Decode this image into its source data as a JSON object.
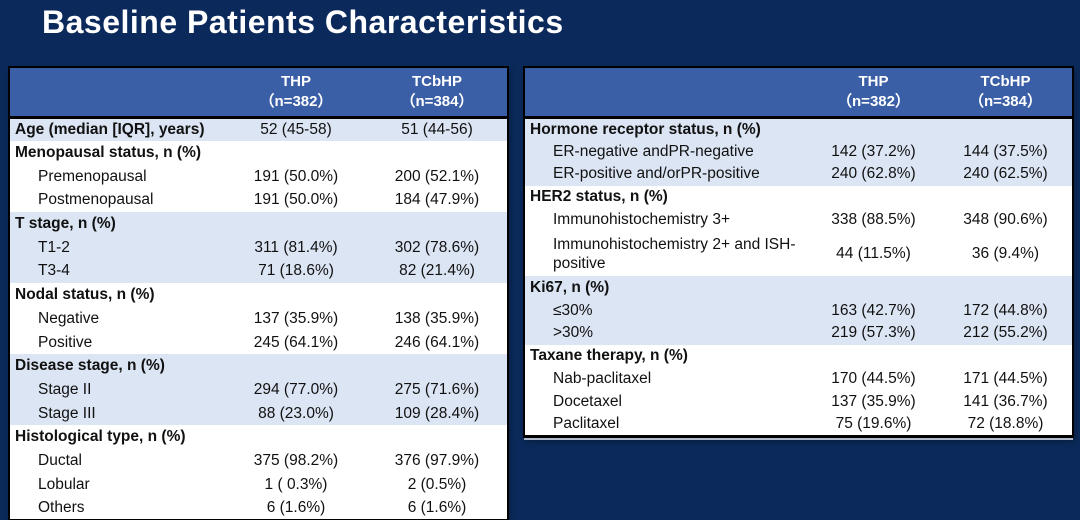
{
  "title": "Baseline Patients Characteristics",
  "colors": {
    "slide_bg": "#0B2A5B",
    "header_bg": "#3B5FA6",
    "band_blue": "#DCE5F3",
    "band_white": "#FFFFFF",
    "border": "#000000",
    "text": "#111111",
    "title_color": "#FFFFFF"
  },
  "tables": [
    {
      "name": "left-baseline-table",
      "columns": [
        {
          "name": "THP",
          "n": "（n=382）"
        },
        {
          "name": "TCbHP",
          "n": "（n=384）"
        }
      ],
      "rows": [
        {
          "label": "Age (median [IQR], years)",
          "bold": true,
          "indent": false,
          "band": "blue",
          "v1": "52 (45-58)",
          "v2": "51 (44-56)"
        },
        {
          "label": "Menopausal status, n (%)",
          "bold": true,
          "indent": false,
          "band": "white",
          "v1": "",
          "v2": ""
        },
        {
          "label": "Premenopausal",
          "bold": false,
          "indent": true,
          "band": "white",
          "v1": "191 (50.0%)",
          "v2": "200 (52.1%)"
        },
        {
          "label": "Postmenopausal",
          "bold": false,
          "indent": true,
          "band": "white",
          "v1": "191 (50.0%)",
          "v2": "184 (47.9%)"
        },
        {
          "label": "T stage, n (%)",
          "bold": true,
          "indent": false,
          "band": "blue",
          "v1": "",
          "v2": ""
        },
        {
          "label": "T1-2",
          "bold": false,
          "indent": true,
          "band": "blue",
          "v1": "311 (81.4%)",
          "v2": "302 (78.6%)"
        },
        {
          "label": "T3-4",
          "bold": false,
          "indent": true,
          "band": "blue",
          "v1": "71 (18.6%)",
          "v2": "82 (21.4%)"
        },
        {
          "label": "Nodal status, n (%)",
          "bold": true,
          "indent": false,
          "band": "white",
          "v1": "",
          "v2": ""
        },
        {
          "label": "Negative",
          "bold": false,
          "indent": true,
          "band": "white",
          "v1": "137 (35.9%)",
          "v2": "138 (35.9%)"
        },
        {
          "label": "Positive",
          "bold": false,
          "indent": true,
          "band": "white",
          "v1": "245 (64.1%)",
          "v2": "246 (64.1%)"
        },
        {
          "label": "Disease stage, n (%)",
          "bold": true,
          "indent": false,
          "band": "blue",
          "v1": "",
          "v2": ""
        },
        {
          "label": "Stage II",
          "bold": false,
          "indent": true,
          "band": "blue",
          "v1": "294 (77.0%)",
          "v2": "275 (71.6%)"
        },
        {
          "label": "Stage III",
          "bold": false,
          "indent": true,
          "band": "blue",
          "v1": "88 (23.0%)",
          "v2": "109 (28.4%)"
        },
        {
          "label": "Histological type, n (%)",
          "bold": true,
          "indent": false,
          "band": "white",
          "v1": "",
          "v2": ""
        },
        {
          "label": "Ductal",
          "bold": false,
          "indent": true,
          "band": "white",
          "v1": "375 (98.2%)",
          "v2": "376 (97.9%)"
        },
        {
          "label": "Lobular",
          "bold": false,
          "indent": true,
          "band": "white",
          "v1": "1 ( 0.3%)",
          "v2": "2 (0.5%)"
        },
        {
          "label": "Others",
          "bold": false,
          "indent": true,
          "band": "white",
          "v1": "6 (1.6%)",
          "v2": "6 (1.6%)"
        }
      ]
    },
    {
      "name": "right-baseline-table",
      "columns": [
        {
          "name": "THP",
          "n": "（n=382）"
        },
        {
          "name": "TCbHP",
          "n": "（n=384）"
        }
      ],
      "rows": [
        {
          "label": "Hormone receptor status, n (%)",
          "bold": true,
          "indent": false,
          "band": "blue",
          "v1": "",
          "v2": ""
        },
        {
          "label": "ER-negative andPR-negative",
          "bold": false,
          "indent": true,
          "band": "blue",
          "v1": "142 (37.2%)",
          "v2": "144 (37.5%)"
        },
        {
          "label": "ER-positive and/orPR-positive",
          "bold": false,
          "indent": true,
          "band": "blue",
          "v1": "240 (62.8%)",
          "v2": "240 (62.5%)"
        },
        {
          "label": "HER2 status, n (%)",
          "bold": true,
          "indent": false,
          "band": "white",
          "v1": "",
          "v2": ""
        },
        {
          "label": "Immunohistochemistry 3+",
          "bold": false,
          "indent": true,
          "band": "white",
          "v1": "338 (88.5%)",
          "v2": "348 (90.6%)"
        },
        {
          "label": "Immunohistochemistry 2+ and ISH-positive",
          "bold": false,
          "indent": true,
          "band": "white",
          "wrap": true,
          "v1": "44 (11.5%)",
          "v2": "36 (9.4%)"
        },
        {
          "label": "Ki67, n (%)",
          "bold": true,
          "indent": false,
          "band": "blue",
          "v1": "",
          "v2": ""
        },
        {
          "label": "≤30%",
          "bold": false,
          "indent": true,
          "band": "blue",
          "v1": "163 (42.7%)",
          "v2": "172 (44.8%)"
        },
        {
          "label": ">30%",
          "bold": false,
          "indent": true,
          "band": "blue",
          "v1": "219 (57.3%)",
          "v2": "212 (55.2%)"
        },
        {
          "label": "Taxane therapy, n (%)",
          "bold": true,
          "indent": false,
          "band": "white",
          "v1": "",
          "v2": ""
        },
        {
          "label": "Nab-paclitaxel",
          "bold": false,
          "indent": true,
          "band": "white",
          "v1": "170 (44.5%)",
          "v2": "171 (44.5%)"
        },
        {
          "label": "Docetaxel",
          "bold": false,
          "indent": true,
          "band": "white",
          "v1": "137 (35.9%)",
          "v2": "141 (36.7%)"
        },
        {
          "label": "Paclitaxel",
          "bold": false,
          "indent": true,
          "band": "white",
          "v1": "75 (19.6%)",
          "v2": "72 (18.8%)"
        }
      ]
    }
  ]
}
